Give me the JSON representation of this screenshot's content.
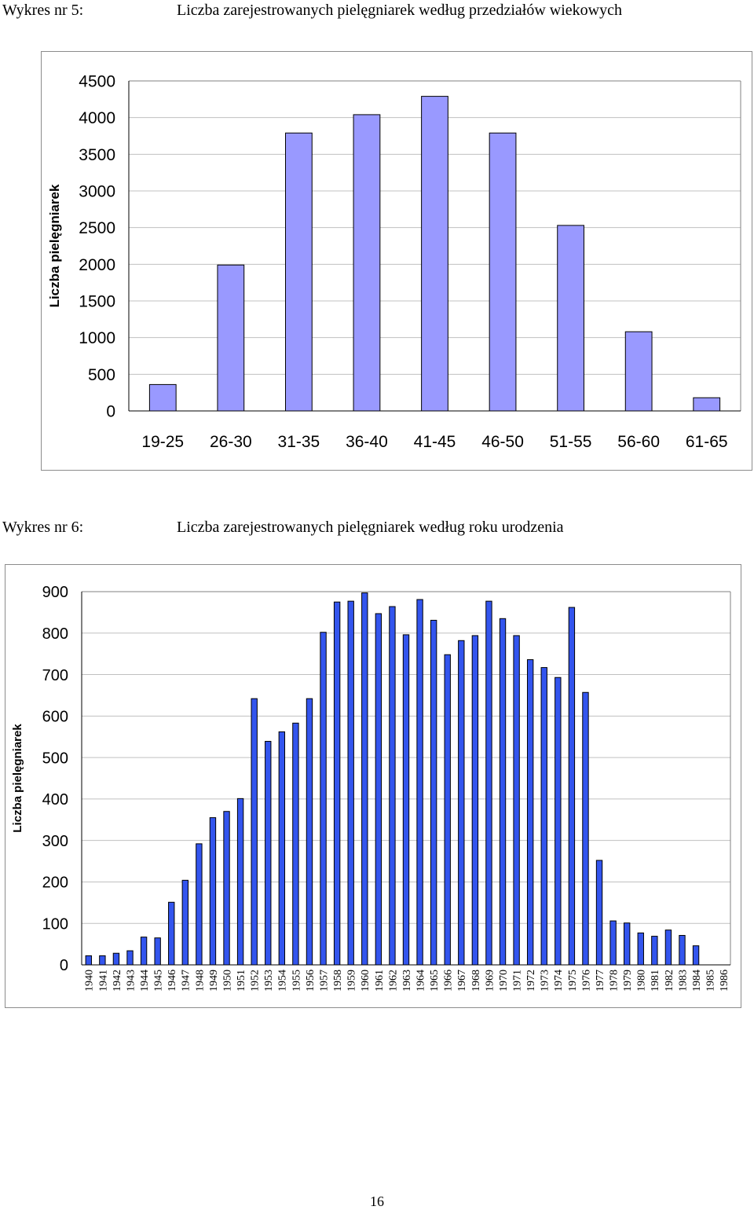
{
  "chart1_caption": {
    "number": "Wykres nr 5:",
    "title": "Liczba zarejestrowanych pielęgniarek według przedziałów wiekowych"
  },
  "chart2_caption": {
    "number": "Wykres nr 6:",
    "title": "Liczba zarejestrowanych pielęgniarek według roku urodzenia"
  },
  "page_number": "16",
  "colors": {
    "bar1": "#9999ff",
    "bar2": "#3355ee",
    "grid": "#c0c0c0",
    "border": "#8c8c8c"
  },
  "chart_data": [
    {
      "type": "bar",
      "title": "Liczba zarejestrowanych pielęgniarek według przedziałów wiekowych",
      "xlabel": "",
      "ylabel": "Liczba pielęgniarek",
      "ylim": [
        0,
        4500
      ],
      "yticks": [
        0,
        500,
        1000,
        1500,
        2000,
        2500,
        3000,
        3500,
        4000,
        4500
      ],
      "grid": true,
      "categories": [
        "19-25",
        "26-30",
        "31-35",
        "36-40",
        "41-45",
        "46-50",
        "51-55",
        "56-60",
        "61-65"
      ],
      "values": [
        360,
        1990,
        3790,
        4040,
        4290,
        3790,
        2530,
        1080,
        180
      ]
    },
    {
      "type": "bar",
      "title": "Liczba zarejestrowanych pielęgniarek według roku urodzenia",
      "xlabel": "",
      "ylabel": "Liczba pielęgniarek",
      "ylim": [
        0,
        900
      ],
      "yticks": [
        0,
        100,
        200,
        300,
        400,
        500,
        600,
        700,
        800,
        900
      ],
      "grid": true,
      "categories": [
        "1940",
        "1941",
        "1942",
        "1943",
        "1944",
        "1945",
        "1946",
        "1947",
        "1948",
        "1949",
        "1950",
        "1951",
        "1952",
        "1953",
        "1954",
        "1955",
        "1956",
        "1957",
        "1958",
        "1959",
        "1960",
        "1961",
        "1962",
        "1963",
        "1964",
        "1965",
        "1966",
        "1967",
        "1968",
        "1969",
        "1970",
        "1971",
        "1972",
        "1973",
        "1974",
        "1975",
        "1976",
        "1977",
        "1978",
        "1979",
        "1980",
        "1981",
        "1982",
        "1983",
        "1984",
        "1985",
        "1986"
      ],
      "values": [
        22,
        22,
        28,
        34,
        67,
        65,
        151,
        204,
        292,
        355,
        370,
        401,
        642,
        539,
        562,
        583,
        642,
        802,
        875,
        877,
        897,
        847,
        864,
        796,
        881,
        831,
        748,
        782,
        794,
        877,
        835,
        794,
        736,
        717,
        693,
        862,
        657,
        252,
        106,
        101,
        77,
        69,
        84,
        71,
        46,
        0,
        0
      ]
    }
  ]
}
